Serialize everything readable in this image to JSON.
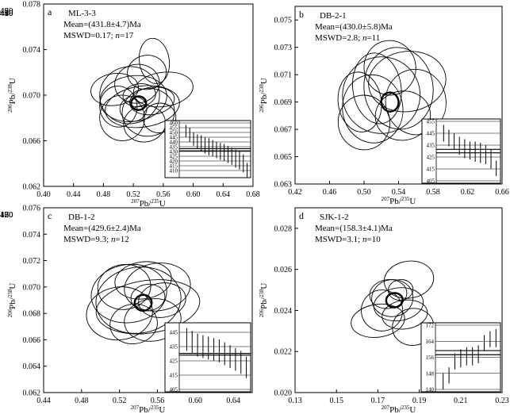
{
  "chart_data": [
    {
      "type": "scatter",
      "panel_letter": "a",
      "sample": "ML-3-3",
      "mean_text": "Mean=(431.8±4.7)Ma",
      "mswd_prefix": "MSWD=0.17; ",
      "n_symbol": "n",
      "n_suffix": "=17",
      "xlabel": {
        "base1": "207",
        "mid": "Pb/",
        "base2": "235",
        "end": "U"
      },
      "ylabel": {
        "base1": "206",
        "mid": "Pb/",
        "base2": "238",
        "end": "U"
      },
      "xlim": [
        0.4,
        0.68
      ],
      "ylim": [
        0.062,
        0.078
      ],
      "xticks": [
        0.4,
        0.44,
        0.48,
        0.52,
        0.56,
        0.6,
        0.64,
        0.68
      ],
      "yticks": [
        0.062,
        0.066,
        0.07,
        0.074,
        0.078
      ],
      "concordia_ages": [
        400,
        410,
        420,
        430,
        440,
        450,
        460
      ],
      "concordia_labels": [
        420,
        460
      ],
      "ellipses": [
        {
          "x": 0.527,
          "y": 0.0693,
          "sx": 0.01,
          "sy": 0.0006
        },
        {
          "x": 0.52,
          "y": 0.0697,
          "sx": 0.045,
          "sy": 0.002
        },
        {
          "x": 0.532,
          "y": 0.069,
          "sx": 0.05,
          "sy": 0.0018
        },
        {
          "x": 0.515,
          "y": 0.07,
          "sx": 0.04,
          "sy": 0.0025
        },
        {
          "x": 0.54,
          "y": 0.0685,
          "sx": 0.035,
          "sy": 0.0021
        },
        {
          "x": 0.525,
          "y": 0.071,
          "sx": 0.03,
          "sy": 0.0017
        },
        {
          "x": 0.56,
          "y": 0.0705,
          "sx": 0.04,
          "sy": 0.0015
        },
        {
          "x": 0.5,
          "y": 0.069,
          "sx": 0.025,
          "sy": 0.0018
        },
        {
          "x": 0.548,
          "y": 0.073,
          "sx": 0.02,
          "sy": 0.002
        },
        {
          "x": 0.535,
          "y": 0.0675,
          "sx": 0.028,
          "sy": 0.0016
        },
        {
          "x": 0.505,
          "y": 0.068,
          "sx": 0.03,
          "sy": 0.002
        },
        {
          "x": 0.545,
          "y": 0.0695,
          "sx": 0.03,
          "sy": 0.0012
        },
        {
          "x": 0.528,
          "y": 0.07,
          "sx": 0.022,
          "sy": 0.001
        },
        {
          "x": 0.52,
          "y": 0.0688,
          "sx": 0.018,
          "sy": 0.0011
        },
        {
          "x": 0.555,
          "y": 0.068,
          "sx": 0.022,
          "sy": 0.0013
        },
        {
          "x": 0.495,
          "y": 0.0705,
          "sx": 0.032,
          "sy": 0.0014
        },
        {
          "x": 0.538,
          "y": 0.072,
          "sx": 0.026,
          "sy": 0.0015
        }
      ],
      "inset": {
        "ymin": 405,
        "ymax": 460,
        "yticks": [
          410,
          415,
          420,
          425,
          430,
          435,
          440,
          445,
          450,
          455,
          460
        ],
        "mean": 431.8,
        "mean_err": 4.7,
        "bars": [
          [
            445,
            458
          ],
          [
            440,
            455
          ],
          [
            436,
            450
          ],
          [
            433,
            448
          ],
          [
            430,
            447
          ],
          [
            428,
            445
          ],
          [
            426,
            444
          ],
          [
            425,
            442
          ],
          [
            423,
            440
          ],
          [
            421,
            439
          ],
          [
            420,
            438
          ],
          [
            418,
            436
          ],
          [
            416,
            434
          ],
          [
            413,
            432
          ],
          [
            411,
            430
          ],
          [
            408,
            427
          ],
          [
            403,
            418
          ]
        ]
      }
    },
    {
      "type": "scatter",
      "panel_letter": "b",
      "sample": "DB-2-1",
      "mean_text": "Mean=(430.0±5.8)Ma",
      "mswd_prefix": "MSWD=2.8; ",
      "n_symbol": "n",
      "n_suffix": "=11",
      "xlabel": {
        "base1": "207",
        "mid": "Pb/",
        "base2": "235",
        "end": "U"
      },
      "ylabel": {
        "base1": "206",
        "mid": "Pb/",
        "base2": "238",
        "end": "U"
      },
      "xlim": [
        0.42,
        0.66
      ],
      "ylim": [
        0.063,
        0.076
      ],
      "xticks": [
        0.42,
        0.46,
        0.5,
        0.54,
        0.58,
        0.62,
        0.66
      ],
      "yticks": [
        0.063,
        0.065,
        0.067,
        0.069,
        0.071,
        0.073,
        0.075
      ],
      "concordia_ages": [
        400,
        410,
        420,
        430,
        440,
        450,
        460,
        470
      ],
      "concordia_labels": [
        410,
        440,
        450,
        470
      ],
      "ellipses": [
        {
          "x": 0.53,
          "y": 0.069,
          "sx": 0.01,
          "sy": 0.0007
        },
        {
          "x": 0.52,
          "y": 0.0695,
          "sx": 0.045,
          "sy": 0.0028
        },
        {
          "x": 0.54,
          "y": 0.07,
          "sx": 0.04,
          "sy": 0.003
        },
        {
          "x": 0.51,
          "y": 0.0685,
          "sx": 0.035,
          "sy": 0.0025
        },
        {
          "x": 0.55,
          "y": 0.0705,
          "sx": 0.045,
          "sy": 0.0022
        },
        {
          "x": 0.5,
          "y": 0.0675,
          "sx": 0.03,
          "sy": 0.002
        },
        {
          "x": 0.53,
          "y": 0.0715,
          "sx": 0.03,
          "sy": 0.002
        },
        {
          "x": 0.545,
          "y": 0.068,
          "sx": 0.032,
          "sy": 0.0018
        },
        {
          "x": 0.515,
          "y": 0.07,
          "sx": 0.028,
          "sy": 0.0026
        },
        {
          "x": 0.56,
          "y": 0.069,
          "sx": 0.035,
          "sy": 0.0024
        },
        {
          "x": 0.495,
          "y": 0.069,
          "sx": 0.025,
          "sy": 0.0022
        }
      ],
      "inset": {
        "ymin": 405,
        "ymax": 455,
        "yticks": [
          405,
          415,
          425,
          435,
          445,
          455
        ],
        "mean": 430.0,
        "mean_err": 5.8,
        "bars": [
          [
            438,
            452
          ],
          [
            434,
            448
          ],
          [
            431,
            445
          ],
          [
            427,
            442
          ],
          [
            424,
            440
          ],
          [
            423,
            438
          ],
          [
            421,
            438
          ],
          [
            420,
            437
          ],
          [
            419,
            435
          ],
          [
            415,
            431
          ],
          [
            409,
            422
          ]
        ]
      }
    },
    {
      "type": "scatter",
      "panel_letter": "c",
      "sample": "DB-1-2",
      "mean_text": "Mean=(429.6±2.4)Ma",
      "mswd_prefix": "MSWD=9.3; ",
      "n_symbol": "n",
      "n_suffix": "=12",
      "xlabel": {
        "base1": "207",
        "mid": "Pb/",
        "base2": "235",
        "end": "U"
      },
      "ylabel": {
        "base1": "206",
        "mid": "Pb/",
        "base2": "238",
        "end": "U"
      },
      "xlim": [
        0.44,
        0.66
      ],
      "ylim": [
        0.062,
        0.076
      ],
      "xticks": [
        0.44,
        0.48,
        0.52,
        0.56,
        0.6,
        0.64
      ],
      "yticks": [
        0.062,
        0.064,
        0.066,
        0.068,
        0.07,
        0.072,
        0.074,
        0.076
      ],
      "concordia_ages": [
        400,
        410,
        420,
        430,
        440,
        450,
        460
      ],
      "concordia_labels": [
        420,
        460
      ],
      "ellipses": [
        {
          "x": 0.545,
          "y": 0.0688,
          "sx": 0.009,
          "sy": 0.0006
        },
        {
          "x": 0.54,
          "y": 0.069,
          "sx": 0.045,
          "sy": 0.0025
        },
        {
          "x": 0.55,
          "y": 0.0685,
          "sx": 0.055,
          "sy": 0.002
        },
        {
          "x": 0.53,
          "y": 0.0695,
          "sx": 0.04,
          "sy": 0.0022
        },
        {
          "x": 0.56,
          "y": 0.07,
          "sx": 0.035,
          "sy": 0.0018
        },
        {
          "x": 0.52,
          "y": 0.068,
          "sx": 0.035,
          "sy": 0.002
        },
        {
          "x": 0.555,
          "y": 0.0675,
          "sx": 0.03,
          "sy": 0.0016
        },
        {
          "x": 0.545,
          "y": 0.0705,
          "sx": 0.03,
          "sy": 0.0014
        },
        {
          "x": 0.535,
          "y": 0.0672,
          "sx": 0.025,
          "sy": 0.0015
        },
        {
          "x": 0.565,
          "y": 0.069,
          "sx": 0.025,
          "sy": 0.0013
        },
        {
          "x": 0.525,
          "y": 0.07,
          "sx": 0.028,
          "sy": 0.0017
        },
        {
          "x": 0.55,
          "y": 0.0692,
          "sx": 0.018,
          "sy": 0.001
        }
      ],
      "inset": {
        "ymin": 405,
        "ymax": 450,
        "yticks": [
          405,
          415,
          425,
          435,
          445
        ],
        "mean": 429.6,
        "mean_err": 2.4,
        "bars": [
          [
            432,
            448
          ],
          [
            430,
            446
          ],
          [
            428,
            444
          ],
          [
            427,
            443
          ],
          [
            426,
            442
          ],
          [
            425,
            441
          ],
          [
            424,
            440
          ],
          [
            422,
            438
          ],
          [
            420,
            436
          ],
          [
            418,
            434
          ],
          [
            416,
            432
          ],
          [
            413,
            428
          ]
        ]
      }
    },
    {
      "type": "scatter",
      "panel_letter": "d",
      "sample": "SJK-1-2",
      "mean_text": "Mean=(158.3±4.1)Ma",
      "mswd_prefix": "MSWD=3.1; ",
      "n_symbol": "n",
      "n_suffix": "=10",
      "xlabel": {
        "base1": "207",
        "mid": "Pb/",
        "base2": "235",
        "end": "U"
      },
      "ylabel": {
        "base1": "206",
        "mid": "Pb/",
        "base2": "238",
        "end": "U"
      },
      "xlim": [
        0.13,
        0.23
      ],
      "ylim": [
        0.02,
        0.029
      ],
      "xticks": [
        0.13,
        0.15,
        0.17,
        0.19,
        0.21,
        0.23
      ],
      "yticks": [
        0.02,
        0.022,
        0.024,
        0.026,
        0.028
      ],
      "concordia_ages": [
        130,
        140,
        150,
        160,
        170,
        180
      ],
      "concordia_labels": [
        130,
        150,
        170
      ],
      "ellipses": [
        {
          "x": 0.178,
          "y": 0.0245,
          "sx": 0.004,
          "sy": 0.00035
        },
        {
          "x": 0.177,
          "y": 0.0246,
          "sx": 0.01,
          "sy": 0.0009
        },
        {
          "x": 0.18,
          "y": 0.0243,
          "sx": 0.012,
          "sy": 0.0008
        },
        {
          "x": 0.175,
          "y": 0.0248,
          "sx": 0.009,
          "sy": 0.0007
        },
        {
          "x": 0.185,
          "y": 0.0255,
          "sx": 0.012,
          "sy": 0.0009
        },
        {
          "x": 0.172,
          "y": 0.024,
          "sx": 0.01,
          "sy": 0.001
        },
        {
          "x": 0.17,
          "y": 0.0235,
          "sx": 0.013,
          "sy": 0.0008
        },
        {
          "x": 0.183,
          "y": 0.0238,
          "sx": 0.011,
          "sy": 0.0007
        },
        {
          "x": 0.187,
          "y": 0.0232,
          "sx": 0.01,
          "sy": 0.0009
        },
        {
          "x": 0.181,
          "y": 0.025,
          "sx": 0.006,
          "sy": 0.0005
        }
      ],
      "inset": {
        "ymin": 140,
        "ymax": 172,
        "yticks": [
          140,
          148,
          156,
          164,
          172
        ],
        "mean": 158.3,
        "mean_err": 4.1,
        "bars": [
          [
            140,
            148
          ],
          [
            143,
            151
          ],
          [
            150,
            158
          ],
          [
            151,
            160
          ],
          [
            152,
            161
          ],
          [
            152,
            161
          ],
          [
            153,
            162
          ],
          [
            159,
            167
          ],
          [
            161,
            169
          ],
          [
            161,
            170
          ]
        ]
      }
    }
  ]
}
